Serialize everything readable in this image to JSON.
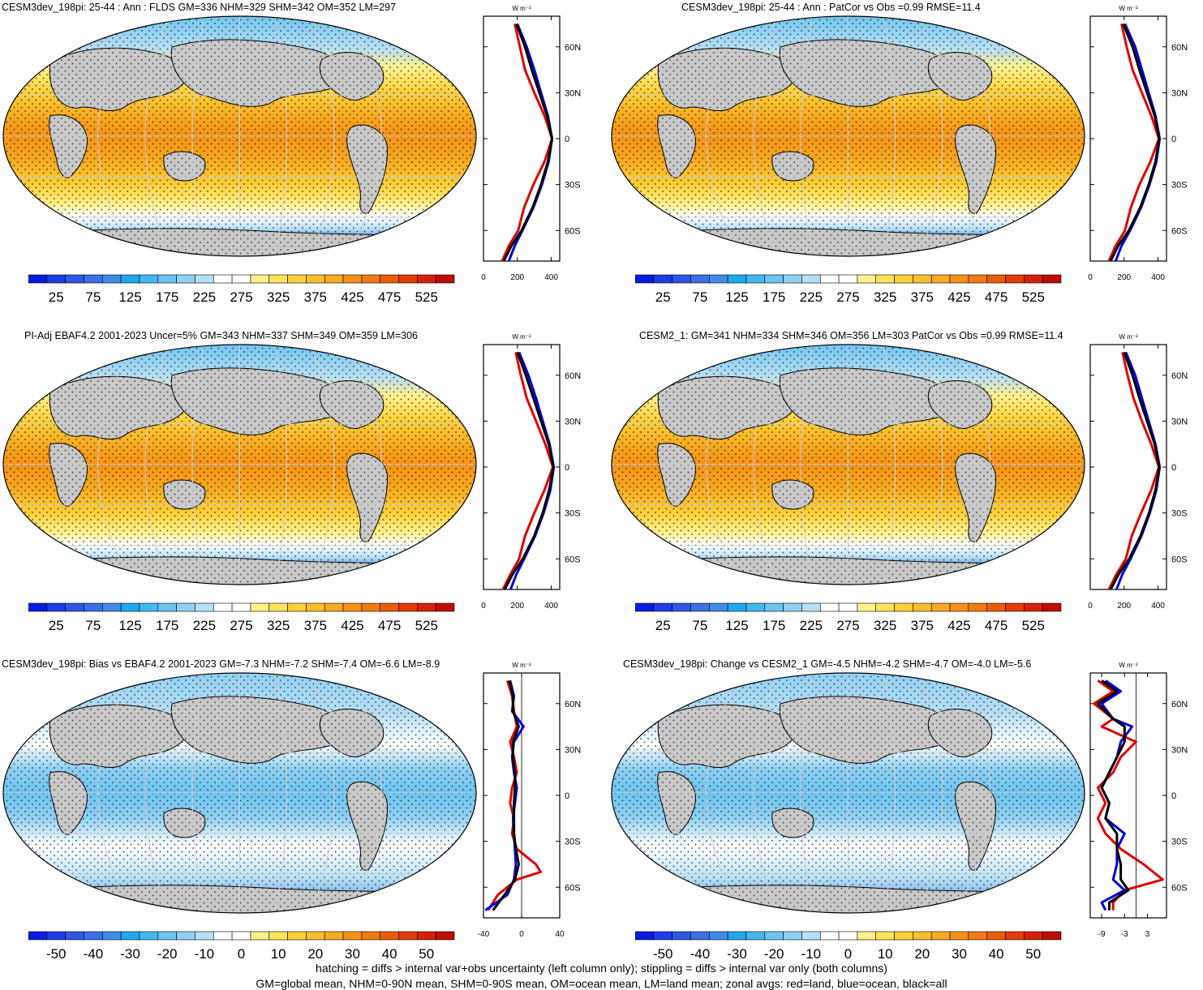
{
  "chart_data": [
    {
      "type": "heatmap",
      "panel": "top-left",
      "title": "CESM3dev_198pi: 25-44 : Ann : FLDS GM=336 NHM=329 SHM=342 OM=352 LM=297",
      "colorbar_ticks": [
        "25",
        "75",
        "125",
        "175",
        "225",
        "275",
        "325",
        "375",
        "425",
        "475",
        "525"
      ],
      "zonal": {
        "unit_label": "W m⁻²",
        "x_ticks": [
          "0",
          "200",
          "400"
        ],
        "xlim": [
          0,
          450
        ],
        "y_ticks": [
          "60N",
          "30N",
          "0",
          "30S",
          "60S"
        ],
        "y_tick_values": [
          60,
          30,
          0,
          -30,
          -60
        ],
        "ylim": [
          -80,
          80
        ],
        "series": [
          {
            "name": "land",
            "color": "#e00000",
            "lat": [
              75,
              60,
              45,
              30,
              15,
              0,
              -15,
              -30,
              -45,
              -60,
              -70,
              -80
            ],
            "values": [
              185,
              215,
              245,
              300,
              360,
              405,
              360,
              295,
              240,
              205,
              150,
              110
            ]
          },
          {
            "name": "ocean",
            "color": "#0000dd",
            "lat": [
              75,
              60,
              45,
              30,
              15,
              0,
              -15,
              -30,
              -45,
              -60,
              -70,
              -80
            ],
            "values": [
              200,
              255,
              300,
              340,
              380,
              405,
              385,
              345,
              295,
              230,
              185,
              150
            ]
          },
          {
            "name": "all",
            "color": "#000000",
            "lat": [
              75,
              60,
              45,
              30,
              15,
              0,
              -15,
              -30,
              -45,
              -60,
              -70,
              -80
            ],
            "values": [
              195,
              245,
              285,
              330,
              375,
              405,
              380,
              340,
              290,
              225,
              165,
              120
            ]
          }
        ]
      }
    },
    {
      "type": "heatmap",
      "panel": "top-right",
      "title": "CESM3dev_198pi: 25-44 : Ann : PatCor vs Obs =0.99 RMSE=11.4",
      "colorbar_ticks": [
        "25",
        "75",
        "125",
        "175",
        "225",
        "275",
        "325",
        "375",
        "425",
        "475",
        "525"
      ],
      "zonal": {
        "unit_label": "W m⁻²",
        "x_ticks": [
          "0",
          "200",
          "400"
        ],
        "xlim": [
          0,
          450
        ],
        "y_ticks": [
          "60N",
          "30N",
          "0",
          "30S",
          "60S"
        ],
        "y_tick_values": [
          60,
          30,
          0,
          -30,
          -60
        ],
        "ylim": [
          -80,
          80
        ],
        "series": [
          {
            "name": "land",
            "color": "#e00000",
            "lat": [
              75,
              60,
              45,
              30,
              15,
              0,
              -15,
              -30,
              -45,
              -60,
              -70,
              -80
            ],
            "values": [
              185,
              215,
              250,
              305,
              360,
              405,
              355,
              290,
              240,
              205,
              150,
              110
            ]
          },
          {
            "name": "ocean",
            "color": "#0000dd",
            "lat": [
              75,
              60,
              45,
              30,
              15,
              0,
              -15,
              -30,
              -45,
              -60,
              -70,
              -80
            ],
            "values": [
              205,
              265,
              305,
              345,
              385,
              410,
              390,
              350,
              300,
              235,
              185,
              150
            ]
          },
          {
            "name": "all",
            "color": "#000000",
            "lat": [
              75,
              60,
              45,
              30,
              15,
              0,
              -15,
              -30,
              -45,
              -60,
              -70,
              -80
            ],
            "values": [
              195,
              250,
              290,
              335,
              380,
              408,
              385,
              345,
              295,
              228,
              165,
              120
            ]
          }
        ]
      }
    },
    {
      "type": "heatmap",
      "panel": "middle-left",
      "title": "PI-Adj EBAF4.2 2001-2023 Uncer=5% GM=343 NHM=337 SHM=349 OM=359 LM=306",
      "colorbar_ticks": [
        "25",
        "75",
        "125",
        "175",
        "225",
        "275",
        "325",
        "375",
        "425",
        "475",
        "525"
      ],
      "zonal": {
        "unit_label": "W m⁻²",
        "x_ticks": [
          "0",
          "200",
          "400"
        ],
        "xlim": [
          0,
          450
        ],
        "y_ticks": [
          "60N",
          "30N",
          "0",
          "30S",
          "60S"
        ],
        "y_tick_values": [
          60,
          30,
          0,
          -30,
          -60
        ],
        "ylim": [
          -80,
          80
        ],
        "series": [
          {
            "name": "land",
            "color": "#e00000",
            "lat": [
              75,
              60,
              45,
              30,
              15,
              0,
              -15,
              -30,
              -45,
              -60,
              -70,
              -80
            ],
            "values": [
              190,
              220,
              255,
              310,
              365,
              410,
              360,
              300,
              245,
              210,
              160,
              115
            ]
          },
          {
            "name": "ocean",
            "color": "#0000dd",
            "lat": [
              75,
              60,
              45,
              30,
              15,
              0,
              -15,
              -30,
              -45,
              -60,
              -70,
              -80
            ],
            "values": [
              210,
              265,
              310,
              350,
              390,
              415,
              395,
              355,
              305,
              240,
              195,
              160
            ]
          },
          {
            "name": "all",
            "color": "#000000",
            "lat": [
              75,
              60,
              45,
              30,
              15,
              0,
              -15,
              -30,
              -45,
              -60,
              -70,
              -80
            ],
            "values": [
              200,
              250,
              295,
              340,
              385,
              412,
              388,
              350,
              300,
              232,
              172,
              125
            ]
          }
        ]
      }
    },
    {
      "type": "heatmap",
      "panel": "middle-right",
      "title": "CESM2_1: GM=341 NHM=334 SHM=346 OM=356 LM=303 PatCor vs Obs =0.99 RMSE=11.4",
      "colorbar_ticks": [
        "25",
        "75",
        "125",
        "175",
        "225",
        "275",
        "325",
        "375",
        "425",
        "475",
        "525"
      ],
      "zonal": {
        "unit_label": "W m⁻²",
        "x_ticks": [
          "0",
          "200",
          "400"
        ],
        "xlim": [
          0,
          450
        ],
        "y_ticks": [
          "60N",
          "30N",
          "0",
          "30S",
          "60S"
        ],
        "y_tick_values": [
          60,
          30,
          0,
          -30,
          -60
        ],
        "ylim": [
          -80,
          80
        ],
        "series": [
          {
            "name": "land",
            "color": "#e00000",
            "lat": [
              75,
              60,
              45,
              30,
              15,
              0,
              -15,
              -30,
              -45,
              -60,
              -70,
              -80
            ],
            "values": [
              190,
              220,
              255,
              305,
              360,
              405,
              360,
              300,
              245,
              210,
              155,
              110
            ]
          },
          {
            "name": "ocean",
            "color": "#0000dd",
            "lat": [
              75,
              60,
              45,
              30,
              15,
              0,
              -15,
              -30,
              -45,
              -60,
              -70,
              -80
            ],
            "values": [
              210,
              265,
              305,
              345,
              385,
              410,
              390,
              352,
              302,
              238,
              190,
              155
            ]
          },
          {
            "name": "all",
            "color": "#000000",
            "lat": [
              75,
              60,
              45,
              30,
              15,
              0,
              -15,
              -30,
              -45,
              -60,
              -70,
              -80
            ],
            "values": [
              200,
              250,
              290,
              335,
              380,
              408,
              385,
              347,
              297,
              230,
              168,
              120
            ]
          }
        ]
      }
    },
    {
      "type": "heatmap",
      "panel": "bottom-left",
      "title": "CESM3dev_198pi: Bias vs EBAF4.2 2001-2023 GM=-7.3 NHM=-7.2 SHM=-7.4 OM=-6.6 LM=-8.9",
      "colorbar_ticks": [
        "-50",
        "-40",
        "-30",
        "-20",
        "-10",
        "0",
        "10",
        "20",
        "30",
        "40",
        "50"
      ],
      "zonal": {
        "unit_label": "W m⁻²",
        "x_ticks": [
          "-40",
          "0",
          "40"
        ],
        "xlim": [
          -40,
          40
        ],
        "y_ticks": [
          "60N",
          "30N",
          "0",
          "30S",
          "60S"
        ],
        "y_tick_values": [
          60,
          30,
          0,
          -30,
          -60
        ],
        "ylim": [
          -80,
          80
        ],
        "series": [
          {
            "name": "land",
            "color": "#e00000",
            "lat": [
              75,
              65,
              55,
              45,
              35,
              25,
              15,
              5,
              -5,
              -15,
              -25,
              -35,
              -45,
              -50,
              -55,
              -65,
              -75
            ],
            "values": [
              -15,
              -10,
              -8,
              -5,
              -12,
              -8,
              -5,
              -10,
              -12,
              -8,
              -10,
              -5,
              15,
              20,
              -5,
              -25,
              -35
            ]
          },
          {
            "name": "ocean",
            "color": "#0000dd",
            "lat": [
              75,
              65,
              55,
              45,
              35,
              25,
              15,
              5,
              -5,
              -15,
              -25,
              -35,
              -45,
              -55,
              -65,
              -75
            ],
            "values": [
              -12,
              -8,
              -10,
              2,
              -8,
              -10,
              -8,
              -5,
              -7,
              -9,
              -8,
              -7,
              -6,
              -8,
              -15,
              -38
            ]
          },
          {
            "name": "all",
            "color": "#000000",
            "lat": [
              75,
              65,
              55,
              45,
              35,
              25,
              15,
              5,
              -5,
              -15,
              -25,
              -35,
              -45,
              -55,
              -65,
              -75
            ],
            "values": [
              -13,
              -9,
              -9,
              -3,
              -9,
              -9,
              -7,
              -7,
              -8,
              -8,
              -8,
              -6,
              -3,
              -7,
              -18,
              -30
            ]
          }
        ]
      }
    },
    {
      "type": "heatmap",
      "panel": "bottom-right",
      "title": "CESM3dev_198pi: Change vs CESM2_1 GM=-4.5 NHM=-4.2 SHM=-4.7 OM=-4.0 LM=-5.6",
      "colorbar_ticks": [
        "-50",
        "-40",
        "-30",
        "-20",
        "-10",
        "0",
        "10",
        "20",
        "30",
        "40",
        "50"
      ],
      "zonal": {
        "unit_label": "W m⁻²",
        "x_ticks": [
          "-9",
          "-3",
          "3"
        ],
        "xlim": [
          -12,
          8
        ],
        "y_ticks": [
          "60N",
          "30N",
          "0",
          "30S",
          "60S"
        ],
        "y_tick_values": [
          60,
          30,
          0,
          -30,
          -60
        ],
        "ylim": [
          -80,
          80
        ],
        "series": [
          {
            "name": "land",
            "color": "#e00000",
            "lat": [
              75,
              68,
              60,
              50,
              45,
              35,
              25,
              15,
              5,
              -5,
              -15,
              -25,
              -35,
              -45,
              -55,
              -62,
              -70,
              -75
            ],
            "values": [
              -10,
              -6,
              -11,
              -6,
              -9,
              0,
              -4,
              -6,
              -10,
              -8,
              -10,
              -8,
              -4,
              2,
              7,
              -3,
              -6,
              -6
            ]
          },
          {
            "name": "ocean",
            "color": "#0000dd",
            "lat": [
              75,
              68,
              60,
              50,
              45,
              35,
              25,
              15,
              5,
              -5,
              -15,
              -25,
              -35,
              -45,
              -55,
              -62,
              -70,
              -75
            ],
            "values": [
              -8,
              -4,
              -9,
              -6,
              -1,
              -4,
              -5,
              -7,
              -9,
              -7,
              -8,
              -3,
              -5,
              -5,
              -6,
              -3,
              -9,
              -8
            ]
          },
          {
            "name": "all",
            "color": "#000000",
            "lat": [
              75,
              68,
              60,
              50,
              45,
              35,
              25,
              15,
              5,
              -5,
              -15,
              -25,
              -35,
              -45,
              -55,
              -62,
              -70,
              -75
            ],
            "values": [
              -9,
              -5,
              -10,
              -6,
              -3,
              -3,
              -5,
              -7,
              -9,
              -7,
              -8,
              -5,
              -5,
              -4,
              -4,
              -2,
              -7,
              -7
            ]
          }
        ]
      }
    }
  ],
  "footer": {
    "line1": "hatching = diffs > internal var+obs uncertainty (left column only); stippling = diffs > internal var only (both columns)",
    "line2": "GM=global mean, NHM=0-90N mean, SHM=0-90S mean, OM=ocean mean, LM=land mean; zonal avgs: red=land, blue=ocean, black=all"
  },
  "colors": {
    "abs_scale": [
      "#0a1ae0",
      "#1f3de6",
      "#2f55e8",
      "#3b6fe6",
      "#3f8be8",
      "#20a8ee",
      "#42b8f0",
      "#6cc4f0",
      "#8fd0f2",
      "#b8e0f4",
      "#ffffff",
      "#ffffff",
      "#fff08c",
      "#fde35a",
      "#fbd03a",
      "#f9be2c",
      "#f7aa20",
      "#f59216",
      "#f07a10",
      "#ea5c0a",
      "#e23c08",
      "#d62006",
      "#c00c06"
    ],
    "diff_scale": [
      "#0a1ae0",
      "#1f3de6",
      "#2f55e8",
      "#3b6fe6",
      "#3f8be8",
      "#20a8ee",
      "#42b8f0",
      "#6cc4f0",
      "#8fd0f2",
      "#b8e0f4",
      "#ffffff",
      "#ffffff",
      "#fff08c",
      "#fde35a",
      "#fbd03a",
      "#f9be2c",
      "#f7aa20",
      "#f59216",
      "#f07a10",
      "#ea5c0a",
      "#e23c08",
      "#d62006",
      "#c00c06"
    ],
    "land_mask": "#c8c8c8"
  }
}
